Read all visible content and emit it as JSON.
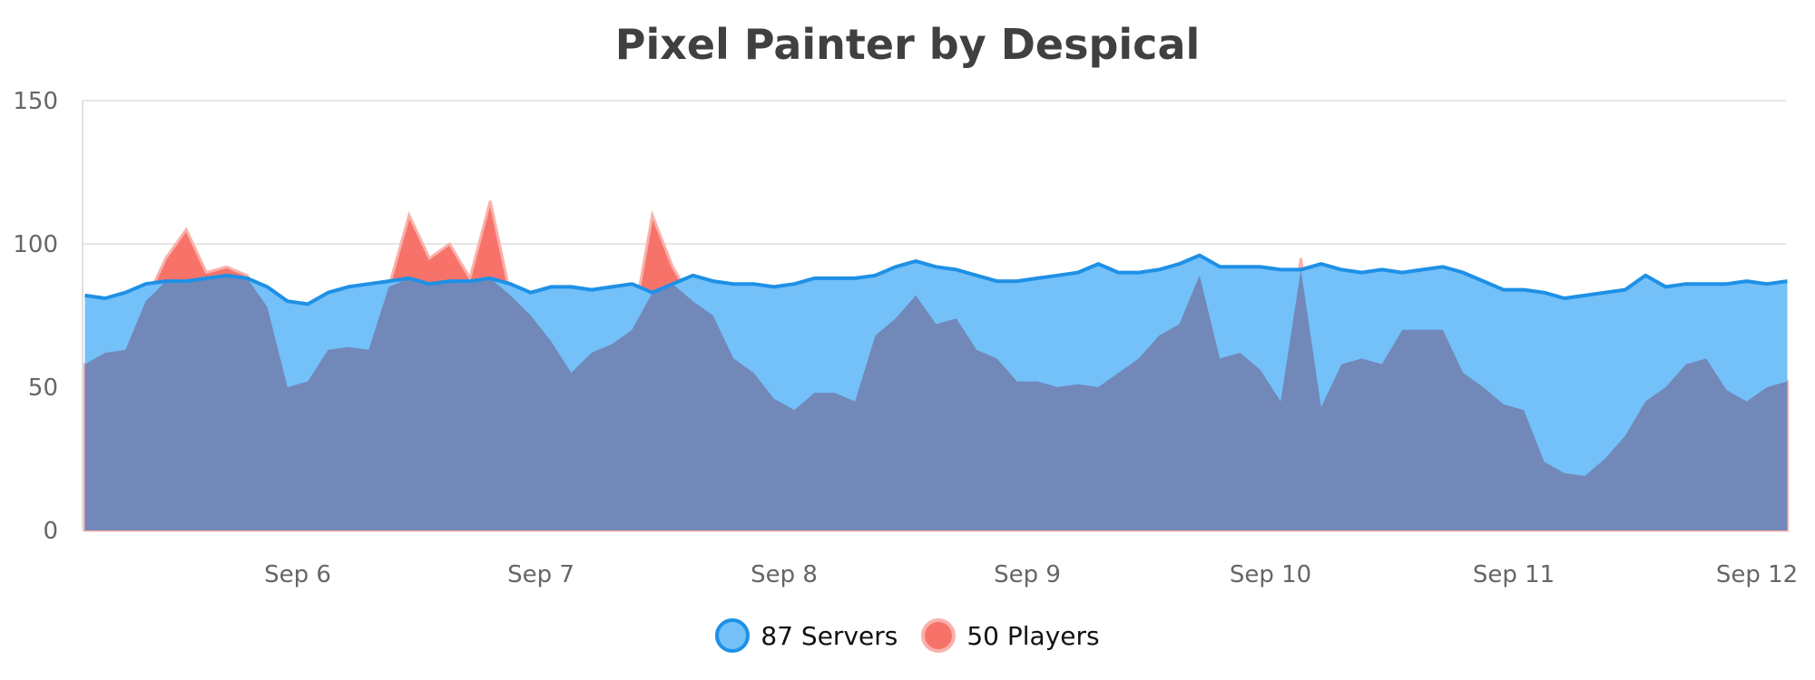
{
  "chart_data": {
    "type": "area",
    "title": "Pixel Painter by Despical",
    "x_unit": "hours since Sep 5 00:00",
    "ylim": [
      0,
      150
    ],
    "yticks": [
      0,
      50,
      100,
      150
    ],
    "xticks": [
      {
        "h": 24,
        "label": "Sep 6"
      },
      {
        "h": 48,
        "label": "Sep 7"
      },
      {
        "h": 72,
        "label": "Sep 8"
      },
      {
        "h": 96,
        "label": "Sep 9"
      },
      {
        "h": 120,
        "label": "Sep 10"
      },
      {
        "h": 144,
        "label": "Sep 11"
      },
      {
        "h": 168,
        "label": "Sep 12"
      }
    ],
    "grid": true,
    "legend_position": "bottom-center",
    "x": [
      3,
      5,
      7,
      9,
      11,
      13,
      15,
      17,
      19,
      21,
      23,
      25,
      27,
      29,
      31,
      33,
      35,
      37,
      39,
      41,
      43,
      45,
      47,
      49,
      51,
      53,
      55,
      57,
      59,
      61,
      63,
      65,
      67,
      69,
      71,
      73,
      75,
      77,
      79,
      81,
      83,
      85,
      87,
      89,
      91,
      93,
      95,
      97,
      99,
      101,
      103,
      105,
      107,
      109,
      111,
      113,
      115,
      117,
      119,
      121,
      123,
      125,
      127,
      129,
      131,
      133,
      135,
      137,
      139,
      141,
      143,
      145,
      147,
      149,
      151,
      153,
      155,
      157,
      159,
      161,
      163,
      165,
      167,
      169,
      171
    ],
    "series": [
      {
        "name": "Servers",
        "legend_label": "87 Servers",
        "color": "#74c0f8",
        "line_color": "#1e90e6",
        "values": [
          82,
          81,
          83,
          86,
          87,
          87,
          88,
          89,
          88,
          85,
          80,
          79,
          83,
          85,
          86,
          87,
          88,
          86,
          87,
          87,
          88,
          86,
          83,
          85,
          85,
          84,
          85,
          86,
          83,
          86,
          89,
          87,
          86,
          86,
          85,
          86,
          88,
          88,
          88,
          89,
          92,
          94,
          92,
          91,
          89,
          87,
          87,
          88,
          89,
          90,
          93,
          90,
          90,
          91,
          93,
          96,
          92,
          92,
          92,
          91,
          91,
          93,
          91,
          90,
          91,
          90,
          91,
          92,
          90,
          87,
          84,
          84,
          83,
          81,
          82,
          83,
          84,
          89,
          85,
          86,
          86,
          86,
          87,
          86,
          87
        ]
      },
      {
        "name": "Players",
        "legend_label": "50 Players",
        "color": "#f7736a",
        "overlap_color": "#7188b9",
        "values": [
          58,
          62,
          63,
          80,
          95,
          105,
          90,
          92,
          89,
          78,
          50,
          52,
          63,
          64,
          63,
          85,
          110,
          95,
          100,
          88,
          115,
          82,
          75,
          66,
          55,
          62,
          65,
          70,
          110,
          92,
          80,
          75,
          60,
          55,
          46,
          42,
          48,
          48,
          45,
          68,
          74,
          82,
          72,
          74,
          63,
          60,
          52,
          52,
          50,
          51,
          50,
          55,
          60,
          68,
          72,
          89,
          60,
          62,
          56,
          45,
          95,
          43,
          58,
          60,
          58,
          70,
          70,
          70,
          55,
          50,
          44,
          42,
          24,
          20,
          19,
          25,
          33,
          45,
          50,
          58,
          60,
          49,
          45,
          50,
          52
        ]
      }
    ]
  }
}
